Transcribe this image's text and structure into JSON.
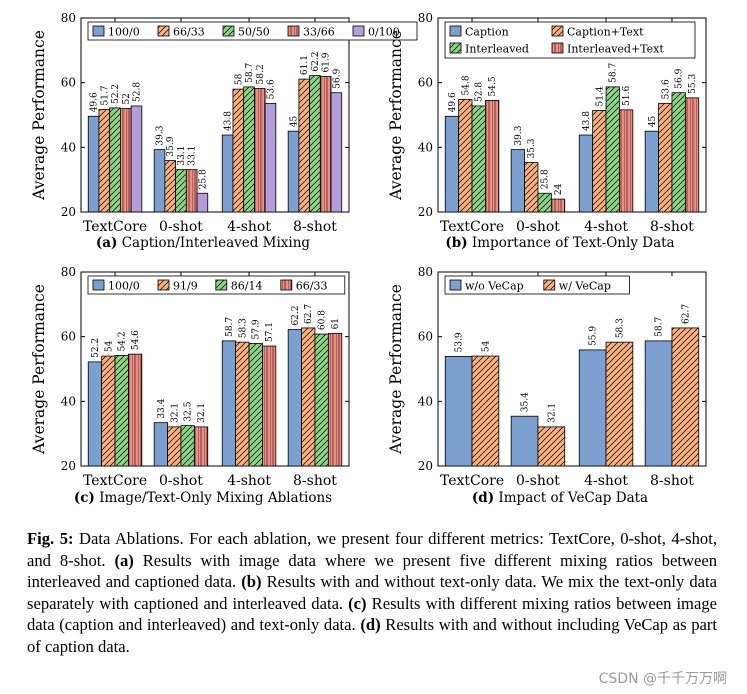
{
  "chart_data": [
    {
      "type": "bar",
      "panel": "(a)",
      "title": "Caption/Interleaved Mixing",
      "ylabel": "Average Performance",
      "xlabel": "",
      "ylim": [
        20,
        80
      ],
      "yticks": [
        20,
        40,
        60,
        80
      ],
      "categories": [
        "TextCore",
        "0-shot",
        "4-shot",
        "8-shot"
      ],
      "legend_position": "top",
      "series": [
        {
          "name": "100/0",
          "values": [
            49.6,
            39.3,
            43.8,
            45
          ],
          "color": "#7b9fcf",
          "pattern": "solid"
        },
        {
          "name": "66/33",
          "values": [
            51.7,
            35.9,
            58,
            61.1
          ],
          "color": "#f4b183",
          "pattern": "hatch"
        },
        {
          "name": "50/50",
          "values": [
            52.2,
            33.1,
            58.7,
            62.2
          ],
          "color": "#8fd18a",
          "pattern": "hatch"
        },
        {
          "name": "33/66",
          "values": [
            52,
            33.1,
            58.2,
            61.9
          ],
          "color": "#f28b82",
          "pattern": "grid"
        },
        {
          "name": "0/100",
          "values": [
            52.8,
            25.8,
            53.6,
            56.9
          ],
          "color": "#b39ddb",
          "pattern": "solid"
        }
      ]
    },
    {
      "type": "bar",
      "panel": "(b)",
      "title": "Importance of Text-Only Data",
      "ylabel": "Average Performance",
      "xlabel": "",
      "ylim": [
        20,
        80
      ],
      "yticks": [
        20,
        40,
        60,
        80
      ],
      "categories": [
        "TextCore",
        "0-shot",
        "4-shot",
        "8-shot"
      ],
      "legend_position": "top",
      "series": [
        {
          "name": "Caption",
          "values": [
            49.6,
            39.3,
            43.8,
            45
          ],
          "color": "#7b9fcf",
          "pattern": "solid"
        },
        {
          "name": "Caption+Text",
          "values": [
            54.8,
            35.3,
            51.4,
            53.6
          ],
          "color": "#f4b183",
          "pattern": "hatch"
        },
        {
          "name": "Interleaved",
          "values": [
            52.8,
            25.8,
            58.7,
            56.9
          ],
          "color": "#8fd18a",
          "pattern": "hatch"
        },
        {
          "name": "Interleaved+Text",
          "values": [
            54.5,
            24,
            51.6,
            55.3
          ],
          "color": "#f28b82",
          "pattern": "grid"
        }
      ]
    },
    {
      "type": "bar",
      "panel": "(c)",
      "title": "Image/Text-Only Mixing Ablations",
      "ylabel": "Average Performance",
      "xlabel": "",
      "ylim": [
        20,
        80
      ],
      "yticks": [
        20,
        40,
        60,
        80
      ],
      "categories": [
        "TextCore",
        "0-shot",
        "4-shot",
        "8-shot"
      ],
      "legend_position": "top",
      "series": [
        {
          "name": "100/0",
          "values": [
            52.2,
            33.4,
            58.7,
            62.2
          ],
          "color": "#7b9fcf",
          "pattern": "solid"
        },
        {
          "name": "91/9",
          "values": [
            54,
            32.1,
            58.3,
            62.7
          ],
          "color": "#f4b183",
          "pattern": "hatch"
        },
        {
          "name": "86/14",
          "values": [
            54.2,
            32.5,
            57.9,
            60.8
          ],
          "color": "#8fd18a",
          "pattern": "hatch"
        },
        {
          "name": "66/33",
          "values": [
            54.6,
            32.1,
            57.1,
            61
          ],
          "color": "#f28b82",
          "pattern": "grid"
        }
      ]
    },
    {
      "type": "bar",
      "panel": "(d)",
      "title": "Impact of VeCap Data",
      "ylabel": "Average Performance",
      "xlabel": "",
      "ylim": [
        20,
        80
      ],
      "yticks": [
        20,
        40,
        60,
        80
      ],
      "categories": [
        "TextCore",
        "0-shot",
        "4-shot",
        "8-shot"
      ],
      "legend_position": "top",
      "series": [
        {
          "name": "w/o VeCap",
          "values": [
            53.9,
            35.4,
            55.9,
            58.7
          ],
          "color": "#7b9fcf",
          "pattern": "solid"
        },
        {
          "name": "w/ VeCap",
          "values": [
            54,
            32.1,
            58.3,
            62.7
          ],
          "color": "#f4b183",
          "pattern": "hatch"
        }
      ]
    }
  ],
  "caption": {
    "fig_label": "Fig. 5:",
    "intro": " Data Ablations. For each ablation, we present four different metrics: TextCore, 0-shot, 4-shot, and 8-shot. ",
    "a_label": "(a)",
    "a_text": " Results with image data where we present five different mixing ratios between interleaved and captioned data. ",
    "b_label": "(b)",
    "b_text": " Results with and without text-only data. We mix the text-only data separately with captioned and interleaved data. ",
    "c_label": "(c)",
    "c_text": " Results with different mixing ratios between image data (caption and interleaved) and text-only data. ",
    "d_label": "(d)",
    "d_text": " Results with and without including VeCap as part of caption data."
  },
  "watermark": "CSDN @千千万万啊"
}
